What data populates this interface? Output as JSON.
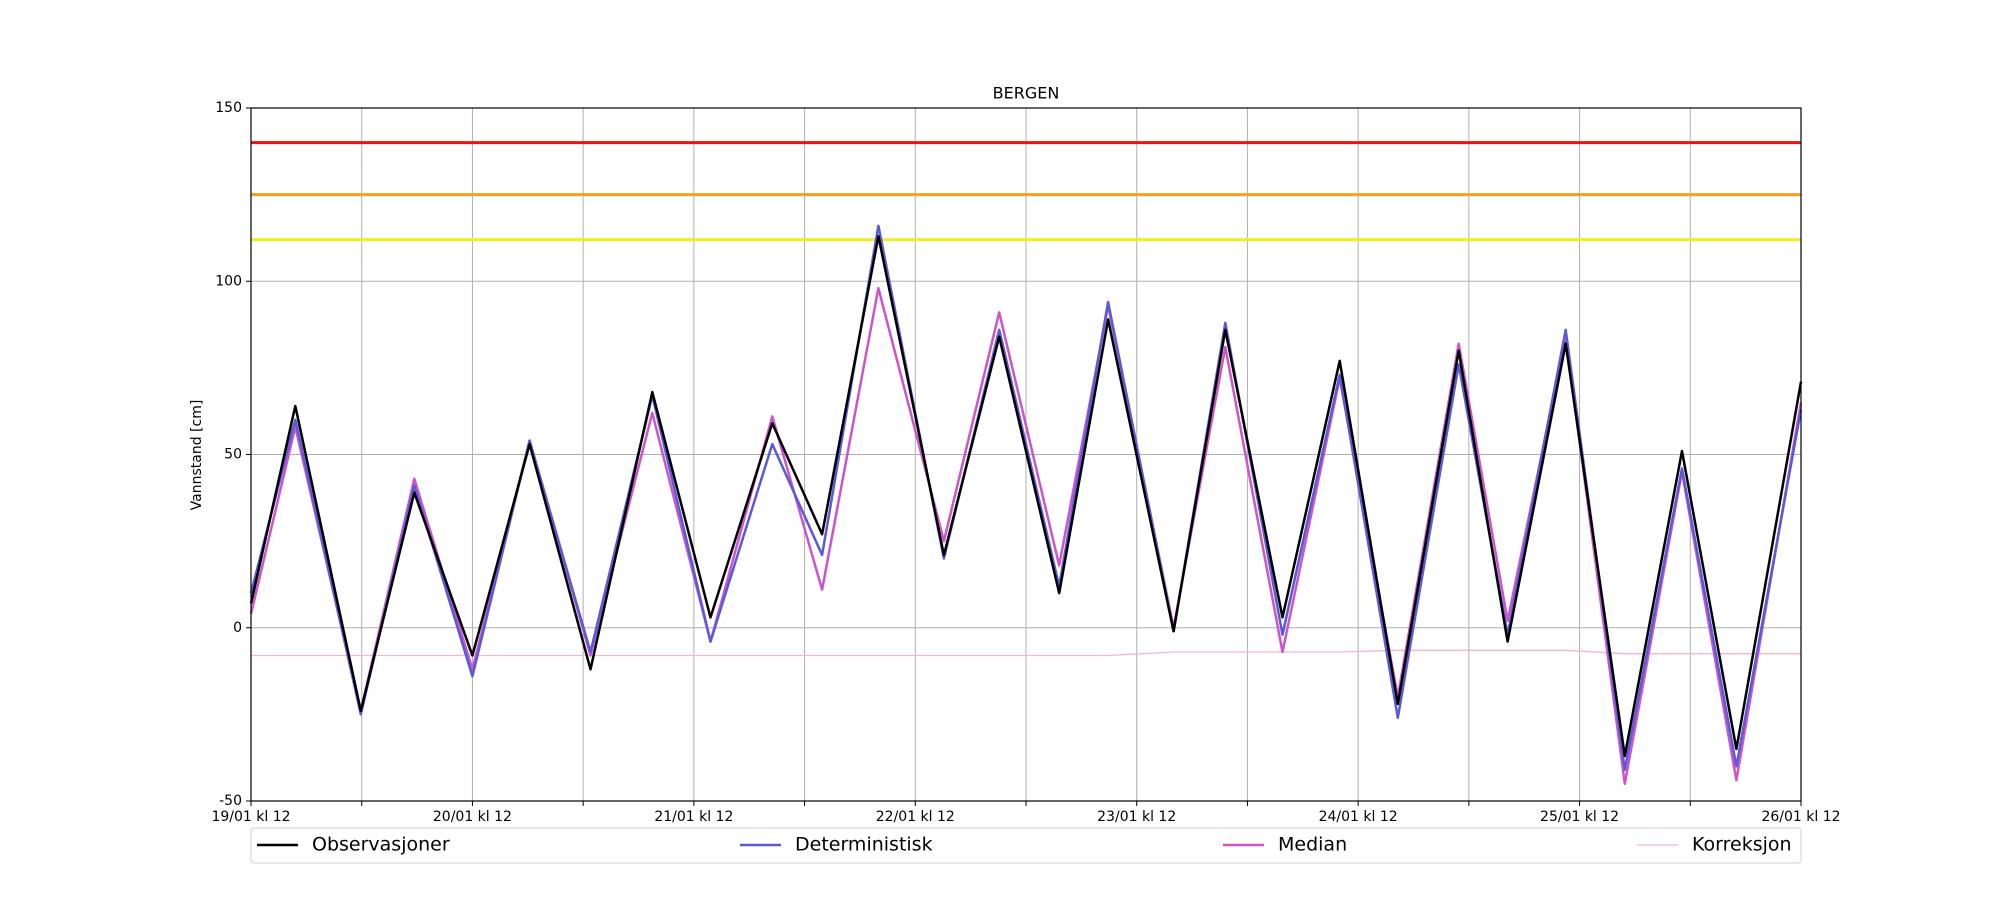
{
  "chart_data": {
    "type": "line",
    "title": "BERGEN",
    "y_label": "Vannstand [cm]",
    "x": [
      0,
      4.8,
      11.9,
      17.7,
      24,
      30.2,
      36.8,
      43.5,
      49.8,
      56.5,
      61.9,
      68,
      75.1,
      81.1,
      87.6,
      92.9,
      100,
      105.6,
      111.8,
      118,
      124.3,
      130.9,
      136.2,
      142.5,
      148.9,
      155.1,
      161,
      168
    ],
    "series": [
      {
        "name": "Observasjoner",
        "color": "#000000",
        "values": [
          7,
          64,
          -24,
          39,
          -8,
          53,
          -12,
          68,
          3,
          59,
          27,
          113,
          21,
          84,
          10,
          89,
          -1,
          86,
          3,
          77,
          -22,
          80,
          -4,
          82,
          -37,
          51,
          -35,
          71
        ]
      },
      {
        "name": "Deterministisk",
        "color": "#5a5ad6",
        "values": [
          10,
          60,
          -25,
          41,
          -14,
          54,
          -7,
          67,
          -4,
          53,
          21,
          116,
          20,
          86,
          12,
          94,
          -1,
          88,
          -2,
          73,
          -26,
          76,
          -2,
          86,
          -41,
          46,
          -40,
          63
        ]
      },
      {
        "name": "Median",
        "color": "#cc55cc",
        "values": [
          4,
          58,
          -24,
          43,
          -12,
          54,
          -8,
          62,
          -4,
          61,
          11,
          98,
          25,
          91,
          18,
          93,
          0,
          81,
          -7,
          72,
          -20,
          82,
          2,
          84,
          -45,
          45,
          -44,
          65
        ]
      },
      {
        "name": "Korreksjon",
        "color": "#f4b8c4",
        "values": [
          -8,
          -8,
          -8,
          -8,
          -8,
          -8,
          -8,
          -8,
          -8,
          -8,
          -8,
          -8,
          -8,
          -8,
          -8,
          -8,
          -7,
          -7,
          -7,
          -7,
          -6.5,
          -6.5,
          -6.5,
          -6.5,
          -7.5,
          -7.5,
          -7.5,
          -7.5
        ]
      }
    ],
    "thresholds": [
      {
        "value": 140,
        "color": "#ee1111"
      },
      {
        "value": 125,
        "color": "#f5a020"
      },
      {
        "value": 112,
        "color": "#f0f020"
      }
    ],
    "xlim": [
      0,
      168
    ],
    "xticks": [
      {
        "value": 0,
        "label": "19/01 kl 12"
      },
      {
        "value": 12,
        "label": null
      },
      {
        "value": 24,
        "label": "20/01 kl 12"
      },
      {
        "value": 36,
        "label": null
      },
      {
        "value": 48,
        "label": "21/01 kl 12"
      },
      {
        "value": 60,
        "label": null
      },
      {
        "value": 72,
        "label": "22/01 kl 12"
      },
      {
        "value": 84,
        "label": null
      },
      {
        "value": 96,
        "label": "23/01 kl 12"
      },
      {
        "value": 108,
        "label": null
      },
      {
        "value": 120,
        "label": "24/01 kl 12"
      },
      {
        "value": 132,
        "label": null
      },
      {
        "value": 144,
        "label": "25/01 kl 12"
      },
      {
        "value": 156,
        "label": null
      },
      {
        "value": 168,
        "label": "26/01 kl 12"
      }
    ],
    "ylim": [
      -50,
      150
    ],
    "yticks": [
      -50,
      0,
      50,
      100,
      150
    ],
    "grid": true,
    "legend": "bottom"
  }
}
